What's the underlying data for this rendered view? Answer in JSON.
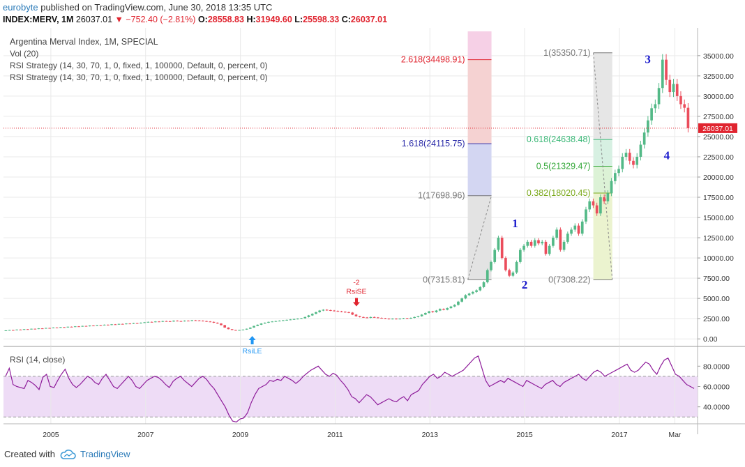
{
  "header": {
    "author": "eurobyte",
    "published": "published on TradingView.com, June 30, 2018 13:35 UTC",
    "symbol": "INDEX:MERV, 1M",
    "last": "26037.01",
    "change": "▼ −752.40 (−2.81%)",
    "open_label": "O:",
    "open": "28558.83",
    "high_label": "H:",
    "high": "31949.60",
    "low_label": "L:",
    "low": "25598.33",
    "close_label": "C:",
    "close": "26037.01"
  },
  "footer": {
    "created_with": "Created with",
    "brand": "TradingView",
    "logo_icon": "tradingview-cloud-icon"
  },
  "colors": {
    "up": "#53b987",
    "down": "#eb4d5c",
    "rsi_line": "#8e1c9a",
    "rsi_band": "#eedcf6",
    "grid": "#e9e9e9",
    "price_line": "#e0242f"
  },
  "chart_data": [
    {
      "type": "candlestick",
      "title": "Argentina Merval Index, 1M, SPECIAL",
      "legend": [
        "Argentina Merval Index, 1M, SPECIAL",
        "Vol (20)",
        "RSI Strategy (14, 30, 70, 1, 0, fixed, 1, 100000, Default, 0, percent, 0)",
        "RSI Strategy (14, 30, 70, 1, 0, fixed, 1, 100000, Default, 0, percent, 0)"
      ],
      "y_ticks": [
        "35000.00",
        "32500.00",
        "30000.00",
        "27500.00",
        "25000.00",
        "22500.00",
        "20000.00",
        "17500.00",
        "15000.00",
        "12500.00",
        "10000.00",
        "7500.00",
        "5000.00",
        "2500.00",
        "0.00"
      ],
      "ylim": [
        -500,
        38000
      ],
      "x_ticks": [
        "2005",
        "2007",
        "2009",
        "2011",
        "2013",
        "2015",
        "2017",
        "Mar"
      ],
      "x_tick_years": [
        2005,
        2007,
        2009,
        2011,
        2013,
        2015,
        2017,
        2018.17
      ],
      "xlim": [
        2004.0,
        2018.65
      ],
      "last_price_label": "26037.01",
      "last_price": 26037.01,
      "closes": [
        1050,
        1100,
        1080,
        1150,
        1120,
        1200,
        1180,
        1250,
        1230,
        1300,
        1280,
        1350,
        1330,
        1400,
        1380,
        1450,
        1420,
        1500,
        1480,
        1550,
        1530,
        1600,
        1560,
        1650,
        1620,
        1700,
        1680,
        1750,
        1720,
        1800,
        1780,
        1850,
        1820,
        1900,
        1880,
        1950,
        1920,
        2000,
        2050,
        2100,
        2080,
        2150,
        2120,
        2200,
        2180,
        2150,
        2250,
        2200,
        2180,
        2250,
        2220,
        2300,
        2280,
        2250,
        2200,
        2150,
        2100,
        2000,
        1900,
        1700,
        1400,
        1200,
        1100,
        1050,
        1100,
        1150,
        1250,
        1400,
        1600,
        1750,
        1900,
        2000,
        2100,
        2150,
        2200,
        2250,
        2300,
        2350,
        2400,
        2450,
        2500,
        2550,
        2700,
        2900,
        3100,
        3300,
        3500,
        3600,
        3550,
        3500,
        3450,
        3400,
        3350,
        3300,
        3250,
        3000,
        2800,
        2700,
        2650,
        2600,
        2700,
        2650,
        2600,
        2550,
        2500,
        2450,
        2500,
        2450,
        2500,
        2550,
        2500,
        2600,
        2700,
        2800,
        3000,
        3200,
        3400,
        3300,
        3500,
        3700,
        3600,
        3800,
        4000,
        4200,
        4600,
        5000,
        5400,
        5600,
        5800,
        6000,
        6400,
        7000,
        8500,
        9500,
        11000,
        12500,
        10000,
        8500,
        7800,
        8200,
        9500,
        11000,
        11500,
        12000,
        11500,
        12200,
        11800,
        12000,
        10500,
        11500,
        12500,
        13500,
        11000,
        12000,
        13000,
        13500,
        14000,
        13000,
        14500,
        16000,
        17000,
        16500,
        15500,
        17500,
        17000,
        18000,
        19500,
        20500,
        21000,
        22500,
        23000,
        22000,
        21500,
        22500,
        24000,
        25500,
        27000,
        28500,
        29000,
        31000,
        34500,
        32000,
        30500,
        31500,
        30000,
        29000,
        28558,
        26037
      ],
      "annotations": [
        {
          "label": "1",
          "year": 2014.8,
          "value": 13800
        },
        {
          "label": "2",
          "year": 2015.0,
          "value": 6200
        },
        {
          "label": "3",
          "year": 2017.6,
          "value": 34100
        },
        {
          "label": "4",
          "year": 2018.0,
          "value": 22200
        }
      ],
      "signals": [
        {
          "label": "RsiLE",
          "year": 2009.25,
          "value": 1050,
          "side": "buy"
        },
        {
          "label": "RsiSE",
          "extra": "-2",
          "year": 2011.45,
          "value": 3500,
          "side": "sell"
        }
      ],
      "fib_extension": {
        "year_start": 2013.8,
        "year_end": 2014.3,
        "levels": [
          {
            "label": "2.618(34498.91)",
            "value": 34498.91,
            "color": "#e0242f",
            "fill_to": 38000,
            "fill": "#f6d0e6"
          },
          {
            "label": "1.618(24115.75)",
            "value": 24115.75,
            "color": "#2a2aa8",
            "fill_to": 34498.91,
            "fill": "#f5d2d2"
          },
          {
            "label": "1(17698.96)",
            "value": 17698.96,
            "color": "#777777",
            "fill_to": 24115.75,
            "fill": "#d3d6f2"
          },
          {
            "label": "0(7315.81)",
            "value": 7315.81,
            "color": "#777777",
            "fill_to": 17698.96,
            "fill": "#e3e3e3"
          }
        ]
      },
      "fib_retracement": {
        "year_start": 2016.45,
        "year_end": 2016.85,
        "levels": [
          {
            "label": "1(35350.71)",
            "value": 35350.71,
            "color": "#777777",
            "fill_to": 24638.48,
            "fill": "#e6e6e6"
          },
          {
            "label": "0.618(24638.48)",
            "value": 24638.48,
            "color": "#3cb878",
            "fill_to": 21329.47,
            "fill": "#d7f0e2"
          },
          {
            "label": "0.5(21329.47)",
            "value": 21329.47,
            "color": "#35a83a",
            "fill_to": 18020.45,
            "fill": "#dcf2d6"
          },
          {
            "label": "0.382(18020.45)",
            "value": 18020.45,
            "color": "#7aa81a",
            "fill_to": 7308.22,
            "fill": "#ebf3cf"
          },
          {
            "label": "0(7308.22)",
            "value": 7308.22,
            "color": "#777777",
            "fill_to": 7308.22,
            "fill": "#ebf3cf"
          }
        ]
      }
    },
    {
      "type": "line",
      "title": "RSI (14, close)",
      "y_ticks": [
        "80.0000",
        "60.0000",
        "40.0000"
      ],
      "ylim": [
        24,
        96
      ],
      "band": [
        30,
        70
      ],
      "values": [
        70,
        78,
        62,
        60,
        59,
        58,
        66,
        64,
        61,
        57,
        69,
        72,
        60,
        59,
        66,
        72,
        77,
        68,
        62,
        59,
        62,
        66,
        70,
        68,
        64,
        62,
        68,
        72,
        66,
        60,
        58,
        62,
        66,
        70,
        66,
        60,
        58,
        62,
        66,
        68,
        70,
        69,
        66,
        62,
        59,
        65,
        68,
        70,
        66,
        63,
        60,
        64,
        68,
        70,
        67,
        62,
        58,
        52,
        46,
        40,
        32,
        26,
        25,
        28,
        29,
        34,
        44,
        52,
        58,
        60,
        62,
        66,
        65,
        67,
        66,
        70,
        68,
        66,
        63,
        66,
        70,
        73,
        76,
        78,
        80,
        76,
        72,
        70,
        73,
        71,
        66,
        62,
        57,
        50,
        48,
        44,
        48,
        52,
        50,
        46,
        42,
        44,
        46,
        48,
        46,
        45,
        48,
        50,
        46,
        52,
        54,
        56,
        62,
        66,
        70,
        72,
        68,
        70,
        74,
        72,
        70,
        72,
        74,
        76,
        80,
        84,
        88,
        90,
        78,
        66,
        60,
        62,
        64,
        66,
        64,
        68,
        66,
        64,
        62,
        60,
        66,
        64,
        62,
        60,
        58,
        62,
        64,
        66,
        62,
        60,
        64,
        66,
        68,
        70,
        72,
        68,
        66,
        70,
        74,
        76,
        74,
        70,
        72,
        74,
        76,
        78,
        80,
        82,
        76,
        74,
        76,
        80,
        84,
        82,
        76,
        72,
        80,
        86,
        88,
        80,
        72,
        70,
        66,
        62,
        60,
        58
      ]
    }
  ]
}
